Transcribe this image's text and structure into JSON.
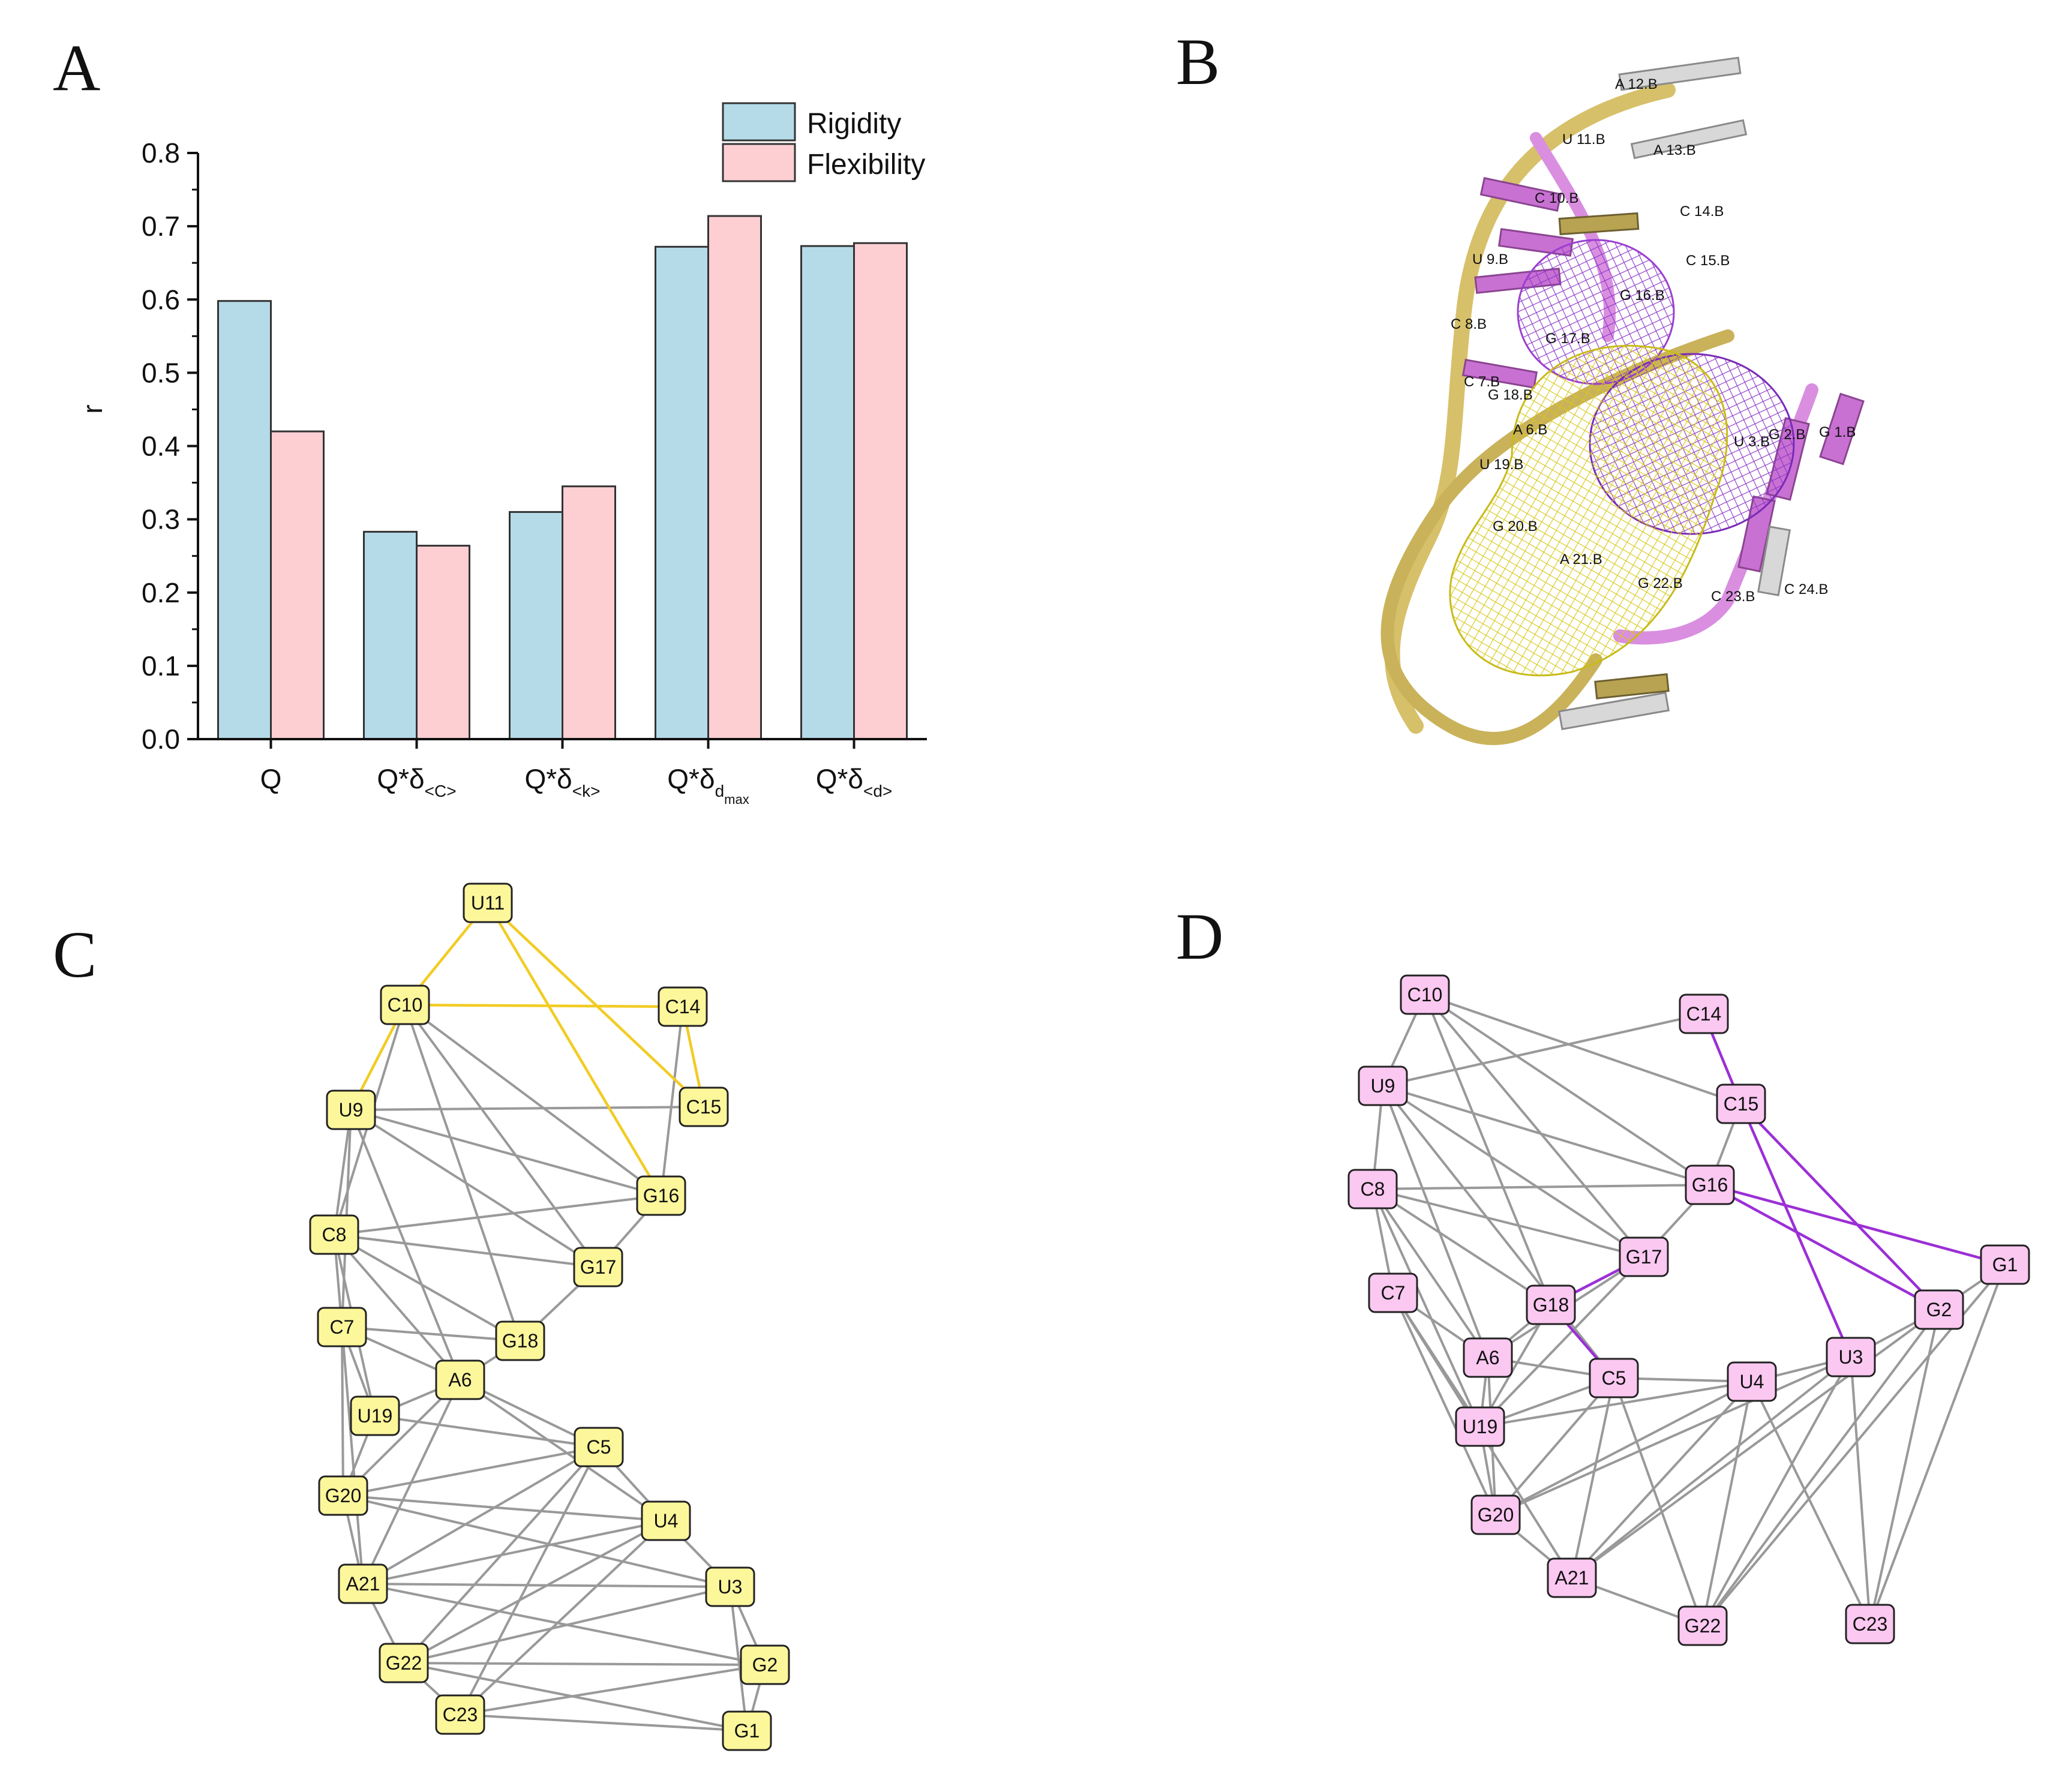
{
  "panel_letters": {
    "a": "A",
    "b": "B",
    "c": "C",
    "d": "D"
  },
  "colors": {
    "rigidity": "#b5dbe8",
    "flexibility": "#fdcfd3",
    "yellow_node": "#fdf79b",
    "yellow_edge": "#f2cc24",
    "pink_node": "#fbc8f1",
    "purple_edge": "#9b2fd6",
    "gray_edge": "#999999"
  },
  "chart_data": {
    "type": "bar",
    "ylabel": "r",
    "xlabel": "",
    "ylim": [
      0,
      0.8
    ],
    "yticks": [
      "0.0",
      "0.1",
      "0.2",
      "0.3",
      "0.4",
      "0.5",
      "0.6",
      "0.7",
      "0.8"
    ],
    "categories": [
      {
        "main": "Q",
        "sub": "",
        "subsub": ""
      },
      {
        "main": "Q*δ",
        "sub": "<C>",
        "subsub": ""
      },
      {
        "main": "Q*δ",
        "sub": "<k>",
        "subsub": ""
      },
      {
        "main": "Q*δ",
        "sub": "d",
        "subsub": "max"
      },
      {
        "main": "Q*δ",
        "sub": "<d>",
        "subsub": ""
      }
    ],
    "series": [
      {
        "name": "Rigidity",
        "values": [
          0.598,
          0.283,
          0.31,
          0.672,
          0.673
        ]
      },
      {
        "name": "Flexibility",
        "values": [
          0.42,
          0.264,
          0.345,
          0.714,
          0.677
        ]
      }
    ],
    "legend_position": "top-right"
  },
  "structure_labels": [
    "A 12.B",
    "U 11.B",
    "A 13.B",
    "C 10.B",
    "C 14.B",
    "U 9.B",
    "C 15.B",
    "G 16.B",
    "C 8.B",
    "G 17.B",
    "C 7.B",
    "G 18.B",
    "A 6.B",
    "U 3.B",
    "G 2.B",
    "G 1.B",
    "U 19.B",
    "G 20.B",
    "A 21.B",
    "G 22.B",
    "C 23.B",
    "C 24.B"
  ],
  "network_c": {
    "nodes": [
      "U11",
      "C10",
      "C14",
      "U9",
      "C15",
      "G16",
      "C8",
      "G17",
      "C7",
      "G18",
      "A6",
      "U19",
      "C5",
      "G20",
      "U4",
      "A21",
      "U3",
      "G22",
      "G2",
      "C23",
      "G1"
    ],
    "highlight_edges": [
      [
        "U11",
        "C10"
      ],
      [
        "U11",
        "C15"
      ],
      [
        "U11",
        "G16"
      ],
      [
        "C10",
        "C14"
      ],
      [
        "C10",
        "U9"
      ],
      [
        "C14",
        "C15"
      ]
    ],
    "edges": [
      [
        "C10",
        "G16"
      ],
      [
        "C10",
        "G17"
      ],
      [
        "C10",
        "G18"
      ],
      [
        "C10",
        "C8"
      ],
      [
        "U9",
        "C15"
      ],
      [
        "U9",
        "G16"
      ],
      [
        "U9",
        "G17"
      ],
      [
        "U9",
        "A6"
      ],
      [
        "U9",
        "C8"
      ],
      [
        "U9",
        "C7"
      ],
      [
        "C14",
        "G16"
      ],
      [
        "C8",
        "G16"
      ],
      [
        "C8",
        "G17"
      ],
      [
        "C8",
        "A6"
      ],
      [
        "C8",
        "C7"
      ],
      [
        "C8",
        "G18"
      ],
      [
        "C8",
        "U19"
      ],
      [
        "C7",
        "G18"
      ],
      [
        "C7",
        "A6"
      ],
      [
        "C7",
        "U19"
      ],
      [
        "C7",
        "G20"
      ],
      [
        "C7",
        "A21"
      ],
      [
        "G16",
        "G17"
      ],
      [
        "G17",
        "G18"
      ],
      [
        "G18",
        "A6"
      ],
      [
        "A6",
        "U19"
      ],
      [
        "A6",
        "G20"
      ],
      [
        "A6",
        "A21"
      ],
      [
        "A6",
        "C5"
      ],
      [
        "A6",
        "U4"
      ],
      [
        "U19",
        "G20"
      ],
      [
        "U19",
        "C5"
      ],
      [
        "G20",
        "C5"
      ],
      [
        "G20",
        "U4"
      ],
      [
        "G20",
        "A21"
      ],
      [
        "G20",
        "U3"
      ],
      [
        "A21",
        "C5"
      ],
      [
        "A21",
        "U4"
      ],
      [
        "A21",
        "U3"
      ],
      [
        "A21",
        "G22"
      ],
      [
        "A21",
        "G2"
      ],
      [
        "C5",
        "U4"
      ],
      [
        "C5",
        "G22"
      ],
      [
        "C5",
        "C23"
      ],
      [
        "U4",
        "U3"
      ],
      [
        "U4",
        "G22"
      ],
      [
        "U4",
        "C23"
      ],
      [
        "U3",
        "G22"
      ],
      [
        "U3",
        "G2"
      ],
      [
        "U3",
        "G1"
      ],
      [
        "G22",
        "G2"
      ],
      [
        "G22",
        "C23"
      ],
      [
        "G22",
        "G1"
      ],
      [
        "C23",
        "G2"
      ],
      [
        "C23",
        "G1"
      ],
      [
        "G2",
        "G1"
      ]
    ]
  },
  "network_d": {
    "nodes": [
      "C10",
      "C14",
      "U9",
      "C15",
      "C8",
      "G16",
      "G17",
      "G1",
      "C7",
      "G18",
      "G2",
      "A6",
      "C5",
      "U4",
      "U3",
      "U19",
      "G20",
      "A21",
      "G22",
      "C23"
    ],
    "highlight_edges": [
      [
        "C14",
        "C15"
      ],
      [
        "C15",
        "G2"
      ],
      [
        "C15",
        "U3"
      ],
      [
        "G16",
        "G1"
      ],
      [
        "G16",
        "G2"
      ],
      [
        "G17",
        "G18"
      ],
      [
        "G18",
        "C5"
      ]
    ],
    "edges": [
      [
        "C10",
        "U9"
      ],
      [
        "C10",
        "C15"
      ],
      [
        "C10",
        "G16"
      ],
      [
        "C10",
        "G17"
      ],
      [
        "C10",
        "G18"
      ],
      [
        "C14",
        "U9"
      ],
      [
        "C14",
        "C15"
      ],
      [
        "U9",
        "C8"
      ],
      [
        "U9",
        "G16"
      ],
      [
        "U9",
        "G17"
      ],
      [
        "U9",
        "A6"
      ],
      [
        "U9",
        "C5"
      ],
      [
        "C8",
        "G16"
      ],
      [
        "C8",
        "G17"
      ],
      [
        "C8",
        "C7"
      ],
      [
        "C8",
        "A6"
      ],
      [
        "C8",
        "U19"
      ],
      [
        "C8",
        "G18"
      ],
      [
        "C15",
        "G16"
      ],
      [
        "G16",
        "G17"
      ],
      [
        "G17",
        "A6"
      ],
      [
        "G17",
        "U19"
      ],
      [
        "C7",
        "A6"
      ],
      [
        "C7",
        "U19"
      ],
      [
        "C7",
        "G20"
      ],
      [
        "C7",
        "A21"
      ],
      [
        "G18",
        "A6"
      ],
      [
        "G18",
        "U19"
      ],
      [
        "A6",
        "C5"
      ],
      [
        "A6",
        "U19"
      ],
      [
        "A6",
        "G20"
      ],
      [
        "U19",
        "G20"
      ],
      [
        "U19",
        "U4"
      ],
      [
        "U19",
        "C5"
      ],
      [
        "G20",
        "C5"
      ],
      [
        "G20",
        "U4"
      ],
      [
        "G20",
        "U3"
      ],
      [
        "G20",
        "A21"
      ],
      [
        "A21",
        "C5"
      ],
      [
        "A21",
        "U4"
      ],
      [
        "A21",
        "U3"
      ],
      [
        "A21",
        "G2"
      ],
      [
        "A21",
        "G22"
      ],
      [
        "C5",
        "U4"
      ],
      [
        "C5",
        "G22"
      ],
      [
        "U4",
        "U3"
      ],
      [
        "U4",
        "G22"
      ],
      [
        "U4",
        "C23"
      ],
      [
        "U3",
        "G22"
      ],
      [
        "U3",
        "C23"
      ],
      [
        "U3",
        "G2"
      ],
      [
        "G2",
        "G1"
      ],
      [
        "G2",
        "G22"
      ],
      [
        "G2",
        "C23"
      ],
      [
        "G1",
        "G22"
      ],
      [
        "G1",
        "C23"
      ]
    ]
  }
}
